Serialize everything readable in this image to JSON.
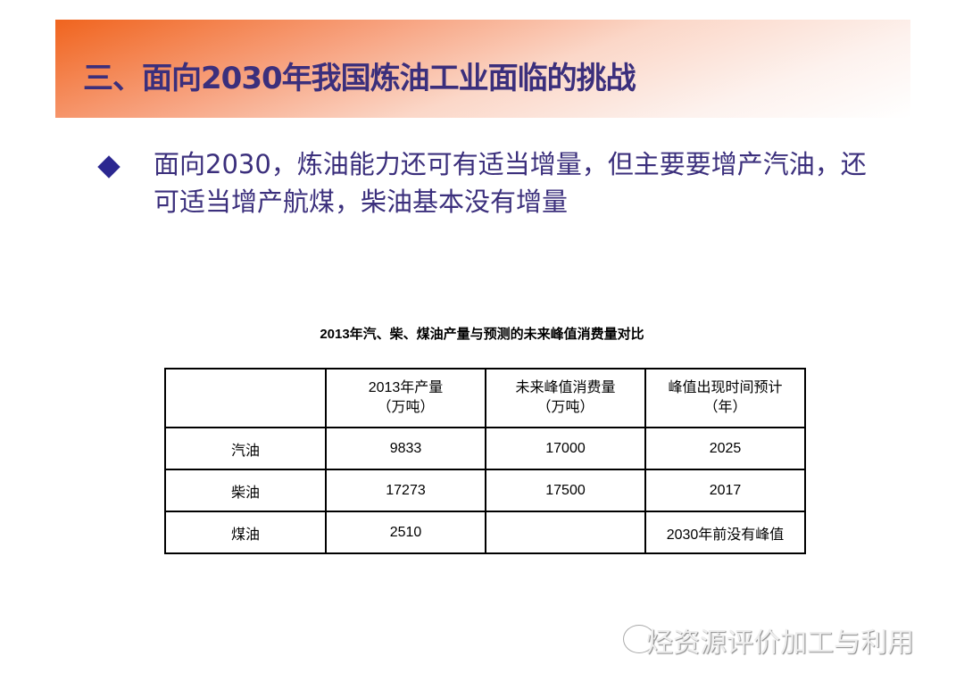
{
  "slide": {
    "title": "三、面向2030年我国炼油工业面临的挑战",
    "bullet": "面向2030，炼油能力还可有适当增量，但主要要增产汽油，还可适当增产航煤，柴油基本没有增量",
    "colors": {
      "title": "#3b2f7c",
      "banner": "#f0641e",
      "bullet": "#2b2790"
    }
  },
  "table": {
    "caption": "2013年汽、柴、煤油产量与预测的未来峰值消费量对比",
    "headers": [
      {
        "line1": "",
        "line2": ""
      },
      {
        "line1": "2013年产量",
        "line2": "（万吨）"
      },
      {
        "line1": "未来峰值消费量",
        "line2": "（万吨）"
      },
      {
        "line1": "峰值出现时间预计",
        "line2": "（年）"
      }
    ],
    "rows": [
      [
        "汽油",
        "9833",
        "17000",
        "2025"
      ],
      [
        "柴油",
        "17273",
        "17500",
        "2017"
      ],
      [
        "煤油",
        "2510",
        "",
        "2030年前没有峰值"
      ]
    ]
  },
  "watermark": {
    "text": "烃资源评价加工与利用",
    "icon": "wechat-icon"
  }
}
